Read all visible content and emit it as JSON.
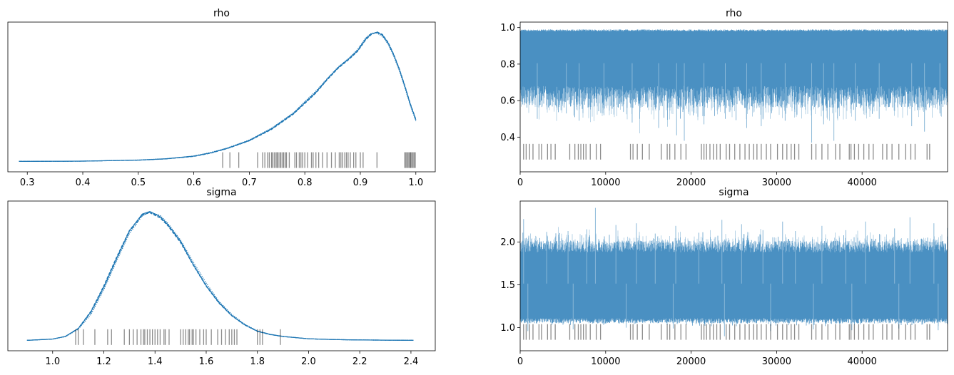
{
  "chart_data": [
    {
      "id": "rho_density",
      "type": "line",
      "title": "rho",
      "xlabel": "",
      "ylabel": "",
      "xlim": [
        0.265,
        1.035
      ],
      "ylim": [
        -0.08,
        1.07
      ],
      "xticks": [
        0.3,
        0.4,
        0.5,
        0.6,
        0.7,
        0.8,
        0.9,
        1.0
      ],
      "xtick_labels": [
        "0.3",
        "0.4",
        "0.5",
        "0.6",
        "0.7",
        "0.8",
        "0.9",
        "1.0"
      ],
      "yticks": [],
      "color": "#1f77b4",
      "series": [
        {
          "line_style": "solid",
          "x": [
            0.285,
            0.4,
            0.5,
            0.55,
            0.6,
            0.63,
            0.66,
            0.7,
            0.74,
            0.78,
            0.8,
            0.82,
            0.84,
            0.86,
            0.88,
            0.895,
            0.91,
            0.92,
            0.93,
            0.94,
            0.95,
            0.96,
            0.97,
            0.98,
            0.99,
            1.0
          ],
          "y": [
            0.0,
            0.002,
            0.01,
            0.02,
            0.04,
            0.065,
            0.1,
            0.16,
            0.25,
            0.37,
            0.45,
            0.53,
            0.63,
            0.72,
            0.79,
            0.85,
            0.94,
            0.98,
            0.99,
            0.97,
            0.91,
            0.82,
            0.71,
            0.58,
            0.44,
            0.32
          ]
        },
        {
          "line_style": "dotted",
          "x": [
            0.285,
            0.4,
            0.5,
            0.55,
            0.6,
            0.63,
            0.66,
            0.7,
            0.74,
            0.78,
            0.8,
            0.82,
            0.84,
            0.86,
            0.88,
            0.895,
            0.91,
            0.92,
            0.93,
            0.94,
            0.95,
            0.96,
            0.97,
            0.98,
            0.99,
            1.0
          ],
          "y": [
            0.0,
            0.002,
            0.011,
            0.021,
            0.042,
            0.068,
            0.103,
            0.165,
            0.255,
            0.375,
            0.46,
            0.54,
            0.635,
            0.725,
            0.795,
            0.86,
            0.95,
            0.985,
            0.985,
            0.96,
            0.9,
            0.81,
            0.7,
            0.57,
            0.43,
            0.31
          ]
        },
        {
          "line_style": "dashed",
          "x": [
            0.285,
            0.4,
            0.5,
            0.55,
            0.6,
            0.63,
            0.66,
            0.7,
            0.74,
            0.78,
            0.8,
            0.82,
            0.84,
            0.86,
            0.88,
            0.895,
            0.91,
            0.92,
            0.93,
            0.94,
            0.95,
            0.96,
            0.97,
            0.98,
            0.99,
            1.0
          ],
          "y": [
            0.0,
            0.002,
            0.009,
            0.019,
            0.038,
            0.063,
            0.098,
            0.158,
            0.245,
            0.365,
            0.445,
            0.525,
            0.625,
            0.715,
            0.785,
            0.845,
            0.935,
            0.975,
            0.995,
            0.975,
            0.915,
            0.825,
            0.715,
            0.585,
            0.445,
            0.325
          ]
        },
        {
          "line_style": "dashdot",
          "x": [
            0.285,
            0.4,
            0.5,
            0.55,
            0.6,
            0.63,
            0.66,
            0.7,
            0.74,
            0.78,
            0.8,
            0.82,
            0.84,
            0.86,
            0.88,
            0.895,
            0.91,
            0.92,
            0.93,
            0.94,
            0.95,
            0.96,
            0.97,
            0.98,
            0.99,
            1.0
          ],
          "y": [
            0.0,
            0.002,
            0.01,
            0.02,
            0.041,
            0.066,
            0.101,
            0.162,
            0.252,
            0.372,
            0.452,
            0.532,
            0.632,
            0.722,
            0.792,
            0.852,
            0.945,
            0.982,
            0.992,
            0.968,
            0.908,
            0.818,
            0.708,
            0.578,
            0.438,
            0.318
          ]
        }
      ],
      "rug": [
        0.652,
        0.665,
        0.681,
        0.715,
        0.724,
        0.728,
        0.733,
        0.736,
        0.74,
        0.742,
        0.745,
        0.748,
        0.75,
        0.752,
        0.755,
        0.757,
        0.76,
        0.762,
        0.765,
        0.767,
        0.772,
        0.782,
        0.785,
        0.79,
        0.793,
        0.796,
        0.8,
        0.805,
        0.812,
        0.815,
        0.82,
        0.825,
        0.832,
        0.84,
        0.848,
        0.855,
        0.862,
        0.865,
        0.868,
        0.872,
        0.875,
        0.878,
        0.882,
        0.888,
        0.892,
        0.9,
        0.905,
        0.93,
        0.98,
        0.982,
        0.984,
        0.986,
        0.988,
        0.99,
        0.991,
        0.993,
        0.995,
        0.997,
        0.999
      ],
      "rug_level": 0.01
    },
    {
      "id": "rho_trace",
      "type": "line",
      "title": "rho",
      "xlabel": "",
      "ylabel": "",
      "xlim": [
        0,
        50000
      ],
      "ylim": [
        0.21,
        1.03
      ],
      "xticks": [
        0,
        10000,
        20000,
        30000,
        40000
      ],
      "xtick_labels": [
        "0",
        "10000",
        "20000",
        "30000",
        "40000"
      ],
      "yticks": [
        0.4,
        0.6,
        0.8,
        1.0
      ],
      "ytick_labels": [
        "0.4",
        "0.6",
        "0.8",
        "1.0"
      ],
      "color": "#1f77b4",
      "n_draws": 50000,
      "band": {
        "upper": 0.99,
        "lower_typical": 0.62
      },
      "spikes_min": [
        [
          2000,
          0.5
        ],
        [
          5400,
          0.53
        ],
        [
          6900,
          0.49
        ],
        [
          9800,
          0.52
        ],
        [
          13100,
          0.48
        ],
        [
          16200,
          0.45
        ],
        [
          18300,
          0.41
        ],
        [
          19200,
          0.38
        ],
        [
          21500,
          0.47
        ],
        [
          24000,
          0.5
        ],
        [
          26500,
          0.45
        ],
        [
          28200,
          0.46
        ],
        [
          31000,
          0.49
        ],
        [
          34100,
          0.37
        ],
        [
          35500,
          0.47
        ],
        [
          36700,
          0.38
        ],
        [
          39200,
          0.49
        ],
        [
          42000,
          0.5
        ],
        [
          45800,
          0.46
        ],
        [
          47300,
          0.43
        ],
        [
          49100,
          0.53
        ]
      ],
      "rug": [
        400,
        700,
        1100,
        1500,
        2200,
        2500,
        3200,
        3600,
        4100,
        5800,
        6400,
        6800,
        7100,
        7400,
        7700,
        8200,
        8900,
        9400,
        12900,
        13200,
        13700,
        14300,
        15100,
        16500,
        17200,
        17500,
        18100,
        18800,
        19400,
        21200,
        21500,
        21800,
        22200,
        22600,
        23000,
        23400,
        24100,
        24500,
        25100,
        25700,
        26300,
        26800,
        27300,
        27700,
        28200,
        28800,
        29300,
        30100,
        30700,
        31200,
        31700,
        32100,
        32600,
        34100,
        34600,
        35300,
        36000,
        36900,
        37400,
        38500,
        38700,
        39100,
        39600,
        40200,
        40800,
        41300,
        42400,
        42900,
        43500,
        44300,
        45100,
        45700,
        46200,
        47600,
        47900
      ],
      "rug_level": 0.32
    },
    {
      "id": "sigma_density",
      "type": "line",
      "title": "sigma",
      "xlabel": "",
      "ylabel": "",
      "xlim": [
        0.825,
        2.495
      ],
      "ylim": [
        -0.08,
        1.07
      ],
      "xticks": [
        1.0,
        1.2,
        1.4,
        1.6,
        1.8,
        2.0,
        2.2,
        2.4
      ],
      "xtick_labels": [
        "1.0",
        "1.2",
        "1.4",
        "1.6",
        "1.8",
        "2.0",
        "2.2",
        "2.4"
      ],
      "yticks": [],
      "color": "#1f77b4",
      "series": [
        {
          "line_style": "solid",
          "x": [
            0.9,
            1.0,
            1.05,
            1.1,
            1.15,
            1.2,
            1.25,
            1.3,
            1.35,
            1.38,
            1.42,
            1.45,
            1.5,
            1.55,
            1.6,
            1.65,
            1.7,
            1.75,
            1.8,
            1.85,
            1.9,
            2.0,
            2.1,
            2.2,
            2.41
          ],
          "y": [
            0.0,
            0.01,
            0.03,
            0.09,
            0.22,
            0.41,
            0.63,
            0.84,
            0.97,
            0.99,
            0.95,
            0.89,
            0.76,
            0.58,
            0.42,
            0.29,
            0.19,
            0.12,
            0.07,
            0.045,
            0.03,
            0.012,
            0.006,
            0.003,
            0.0
          ]
        },
        {
          "line_style": "dotted",
          "x": [
            0.9,
            1.0,
            1.05,
            1.1,
            1.15,
            1.2,
            1.25,
            1.3,
            1.35,
            1.38,
            1.42,
            1.45,
            1.5,
            1.55,
            1.6,
            1.65,
            1.7,
            1.75,
            1.8,
            1.85,
            1.9,
            2.0,
            2.1,
            2.2,
            2.41
          ],
          "y": [
            0.0,
            0.009,
            0.028,
            0.085,
            0.2,
            0.39,
            0.61,
            0.82,
            0.955,
            0.985,
            0.96,
            0.9,
            0.77,
            0.6,
            0.44,
            0.3,
            0.2,
            0.125,
            0.073,
            0.047,
            0.031,
            0.012,
            0.006,
            0.003,
            0.0
          ]
        },
        {
          "line_style": "dashed",
          "x": [
            0.9,
            1.0,
            1.05,
            1.1,
            1.15,
            1.2,
            1.25,
            1.3,
            1.35,
            1.38,
            1.42,
            1.45,
            1.5,
            1.55,
            1.6,
            1.65,
            1.7,
            1.75,
            1.8,
            1.85,
            1.9,
            2.0,
            2.1,
            2.2,
            2.41
          ],
          "y": [
            0.0,
            0.01,
            0.031,
            0.092,
            0.225,
            0.42,
            0.64,
            0.845,
            0.965,
            0.98,
            0.94,
            0.88,
            0.75,
            0.575,
            0.415,
            0.285,
            0.188,
            0.118,
            0.069,
            0.044,
            0.029,
            0.012,
            0.006,
            0.003,
            0.0
          ]
        },
        {
          "line_style": "dashdot",
          "x": [
            0.9,
            1.0,
            1.05,
            1.1,
            1.15,
            1.2,
            1.25,
            1.3,
            1.35,
            1.38,
            1.42,
            1.45,
            1.5,
            1.55,
            1.6,
            1.65,
            1.7,
            1.75,
            1.8,
            1.85,
            1.9,
            2.0,
            2.1,
            2.2,
            2.41
          ],
          "y": [
            0.0,
            0.01,
            0.03,
            0.09,
            0.215,
            0.405,
            0.625,
            0.835,
            0.96,
            0.985,
            0.948,
            0.888,
            0.758,
            0.582,
            0.422,
            0.292,
            0.192,
            0.121,
            0.071,
            0.046,
            0.03,
            0.012,
            0.006,
            0.003,
            0.0
          ]
        }
      ],
      "rug": [
        1.09,
        1.1,
        1.12,
        1.165,
        1.215,
        1.23,
        1.28,
        1.3,
        1.315,
        1.33,
        1.345,
        1.355,
        1.36,
        1.37,
        1.38,
        1.39,
        1.4,
        1.41,
        1.42,
        1.435,
        1.44,
        1.455,
        1.5,
        1.51,
        1.52,
        1.53,
        1.535,
        1.545,
        1.55,
        1.56,
        1.575,
        1.59,
        1.6,
        1.62,
        1.645,
        1.66,
        1.675,
        1.69,
        1.7,
        1.71,
        1.72,
        1.8,
        1.81,
        1.82,
        1.89
      ],
      "rug_level": 0.025
    },
    {
      "id": "sigma_trace",
      "type": "line",
      "title": "sigma",
      "xlabel": "",
      "ylabel": "",
      "xlim": [
        0,
        50000
      ],
      "ylim": [
        0.73,
        2.48
      ],
      "xticks": [
        0,
        10000,
        20000,
        30000,
        40000
      ],
      "xtick_labels": [
        "0",
        "10000",
        "20000",
        "30000",
        "40000"
      ],
      "yticks": [
        1.0,
        1.5,
        2.0
      ],
      "ytick_labels": [
        "1.0",
        "1.5",
        "2.0"
      ],
      "color": "#1f77b4",
      "n_draws": 50000,
      "band": {
        "upper_typical": 1.95,
        "lower_typical": 1.08
      },
      "spikes_max": [
        [
          400,
          2.27
        ],
        [
          3100,
          2.12
        ],
        [
          5600,
          2.13
        ],
        [
          7800,
          2.15
        ],
        [
          8800,
          2.4
        ],
        [
          11200,
          2.2
        ],
        [
          13600,
          2.22
        ],
        [
          15800,
          2.1
        ],
        [
          18200,
          2.19
        ],
        [
          20900,
          2.11
        ],
        [
          23600,
          2.26
        ],
        [
          25900,
          2.21
        ],
        [
          28400,
          2.14
        ],
        [
          30700,
          2.24
        ],
        [
          32200,
          2.13
        ],
        [
          35300,
          2.19
        ],
        [
          38100,
          2.14
        ],
        [
          40400,
          2.24
        ],
        [
          43800,
          2.16
        ],
        [
          45600,
          2.29
        ],
        [
          48400,
          2.22
        ]
      ],
      "spikes_min": [
        [
          900,
          0.96
        ],
        [
          6200,
          0.98
        ],
        [
          12400,
          1.0
        ],
        [
          17900,
          0.99
        ],
        [
          23900,
          0.9
        ],
        [
          29300,
          0.96
        ],
        [
          34300,
          0.98
        ],
        [
          38800,
          0.97
        ],
        [
          44300,
          0.99
        ],
        [
          48900,
          0.97
        ]
      ],
      "rug": [
        400,
        700,
        1100,
        1500,
        2200,
        2500,
        3200,
        3600,
        4100,
        5800,
        6400,
        6800,
        7100,
        7400,
        7700,
        8200,
        8900,
        9400,
        12900,
        13200,
        13700,
        14300,
        15100,
        16500,
        17200,
        17500,
        18100,
        18800,
        19400,
        21200,
        21500,
        21800,
        22200,
        22600,
        23000,
        23400,
        24100,
        24500,
        25100,
        25700,
        26300,
        26800,
        27300,
        27700,
        28200,
        28800,
        29300,
        30100,
        30700,
        31200,
        31700,
        32100,
        32600,
        34100,
        34600,
        35300,
        36000,
        36900,
        37400,
        38500,
        38700,
        39100,
        39600,
        40200,
        40800,
        41300,
        42400,
        42900,
        43500,
        44300,
        45100,
        45700,
        46200,
        47600,
        47900
      ],
      "rug_level": 0.95
    }
  ]
}
